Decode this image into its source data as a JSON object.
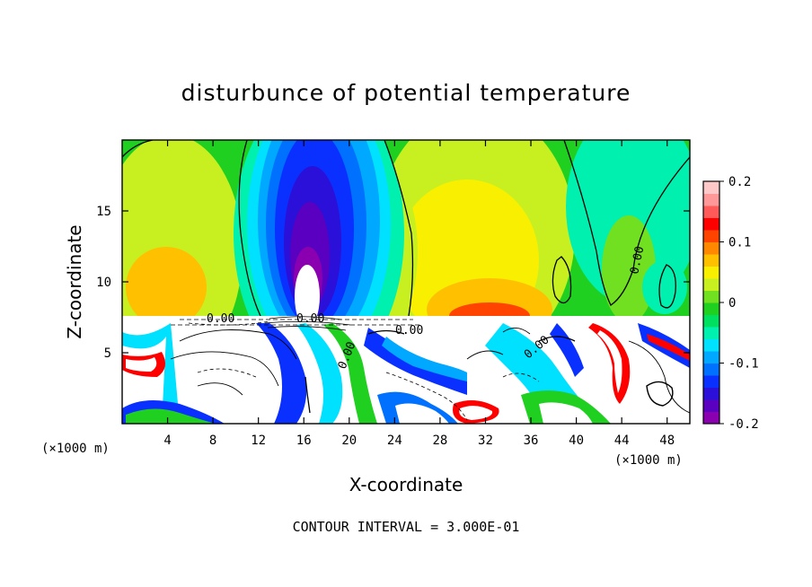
{
  "chart_data": {
    "type": "heatmap",
    "title": "disturbunce of potential temperature",
    "xlabel": "X-coordinate",
    "ylabel": "Z-coordinate",
    "x_unit_left": "(×1000 m)",
    "x_unit_right": "(×1000 m)",
    "xlim": [
      0,
      50
    ],
    "ylim": [
      0,
      20
    ],
    "x_ticks": [
      4,
      8,
      12,
      16,
      20,
      24,
      28,
      32,
      36,
      40,
      44,
      48
    ],
    "y_ticks": [
      5,
      10,
      15
    ],
    "colorbar": {
      "range": [
        -0.2,
        0.2
      ],
      "tick_values": [
        0.2,
        0.1,
        0,
        -0.1,
        -0.2
      ],
      "tick_labels": [
        "0.2",
        "0.1",
        "0",
        "-0.1",
        "-0.2"
      ],
      "colors": [
        "#8a00b0",
        "#5a00c0",
        "#2a10d8",
        "#0a30ff",
        "#0070ff",
        "#00a8ff",
        "#00e0ff",
        "#00f0b0",
        "#00e060",
        "#20d020",
        "#70e020",
        "#c8f020",
        "#f8f000",
        "#ffc000",
        "#ff8800",
        "#ff4400",
        "#ff0000",
        "#ff5a5a",
        "#ff9898",
        "#ffc8c8"
      ]
    },
    "contour_labels": [
      "0.00",
      "0.00",
      "0.00",
      "0.00",
      "0.00",
      "0.00"
    ],
    "contour_interval_text": "CONTOUR INTERVAL = 3.000E-01"
  }
}
